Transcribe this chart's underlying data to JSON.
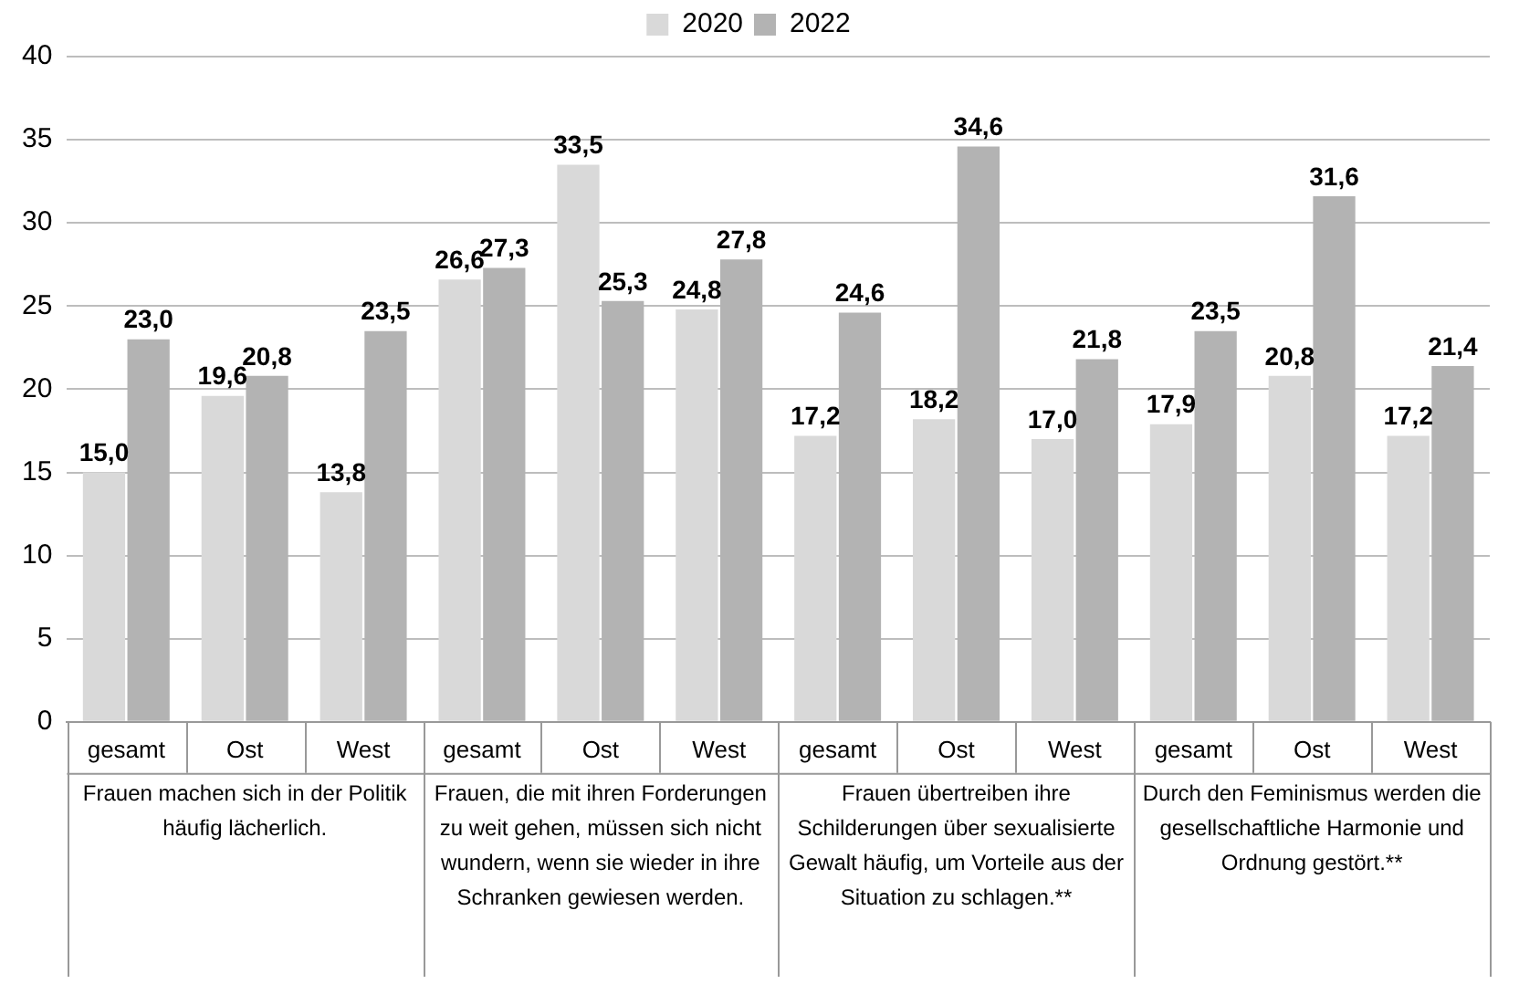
{
  "chart_data": {
    "type": "bar",
    "categories": [
      "gesamt",
      "Ost",
      "West",
      "gesamt",
      "Ost",
      "West",
      "gesamt",
      "Ost",
      "West",
      "gesamt",
      "Ost",
      "West"
    ],
    "series": [
      {
        "name": "2020",
        "color": "#d9d9d9",
        "values": [
          15.0,
          19.6,
          13.8,
          26.6,
          33.5,
          24.8,
          17.2,
          18.2,
          17.0,
          17.9,
          20.8,
          17.2
        ],
        "value_labels": [
          "15,0",
          "19,6",
          "13,8",
          "26,6",
          "33,5",
          "24,8",
          "17,2",
          "18,2",
          "17,0",
          "17,9",
          "20,8",
          "17,2"
        ]
      },
      {
        "name": "2022",
        "color": "#b3b3b3",
        "values": [
          23.0,
          20.8,
          23.5,
          27.3,
          25.3,
          27.8,
          24.6,
          34.6,
          21.8,
          23.5,
          31.6,
          21.4
        ],
        "value_labels": [
          "23,0",
          "20,8",
          "23,5",
          "27,3",
          "25,3",
          "27,8",
          "24,6",
          "34,6",
          "21,8",
          "23,5",
          "31,6",
          "21,4"
        ]
      }
    ],
    "annotations": [
      "Frauen machen sich in der Politik häufig lächerlich.",
      "Frauen, die mit ihren Forderungen zu weit gehen, müssen sich nicht wundern, wenn sie wieder in ihre Schranken gewiesen werden.",
      "Frauen übertreiben ihre Schilderungen über sexualisierte Gewalt häufig, um Vorteile aus der Situation zu schlagen.**",
      "Durch den Feminismus werden die gesellschaftliche Harmonie und Ordnung gestört.**"
    ],
    "ylim": [
      0,
      40
    ],
    "yticks": [
      0,
      5,
      10,
      15,
      20,
      25,
      30,
      35,
      40
    ],
    "grid": "y",
    "legend": "top"
  }
}
